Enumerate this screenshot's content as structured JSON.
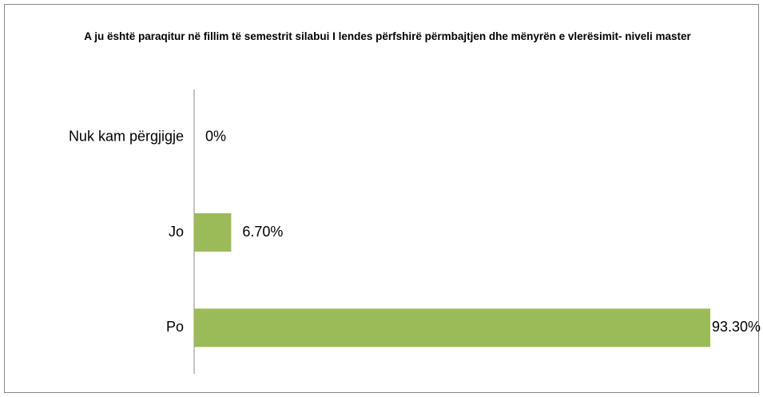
{
  "chart_data": {
    "type": "bar",
    "orientation": "horizontal",
    "title": "A ju është paraqitur në fillim të semestrit silabui I lendes përfshirë përmbajtjen dhe mënyrën e vlerësimit- niveli master",
    "categories": [
      "Nuk kam përgjigje",
      "Jo",
      "Po"
    ],
    "values": [
      0,
      6.7,
      93.3
    ],
    "value_labels": [
      "0%",
      "6.70%",
      "93.30%"
    ],
    "color": "#9bbb59"
  }
}
